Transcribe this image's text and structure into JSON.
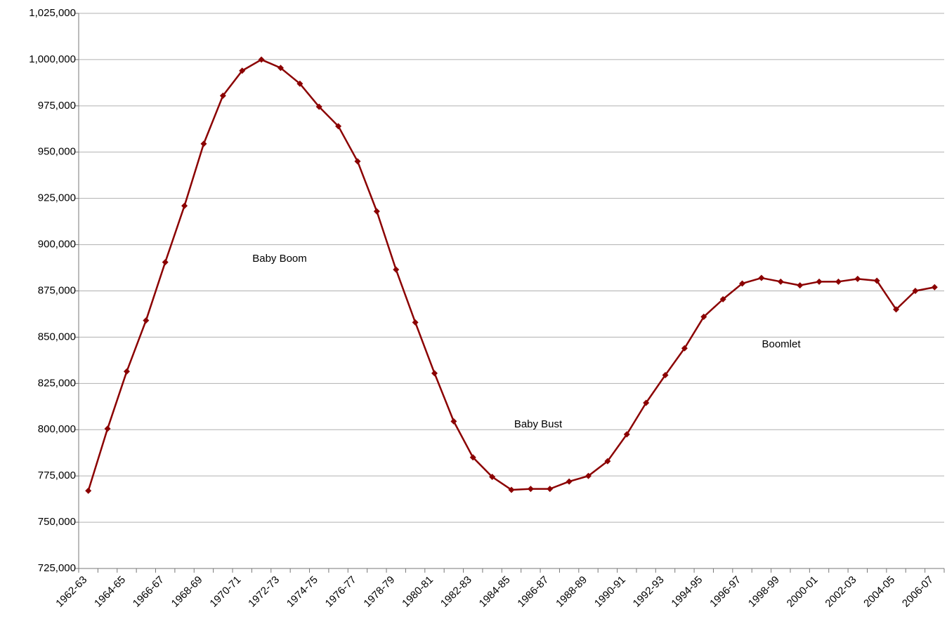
{
  "chart_data": {
    "type": "line",
    "categories": [
      "1962-63",
      null,
      "1964-65",
      null,
      "1966-67",
      null,
      "1968-69",
      null,
      "1970-71",
      null,
      "1972-73",
      null,
      "1974-75",
      null,
      "1976-77",
      null,
      "1978-79",
      null,
      "1980-81",
      null,
      "1982-83",
      null,
      "1984-85",
      null,
      "1986-87",
      null,
      "1988-89",
      null,
      "1990-91",
      null,
      "1992-93",
      null,
      "1994-95",
      null,
      "1996-97",
      null,
      "1998-99",
      null,
      "2000-01",
      null,
      "2002-03",
      null,
      "2004-05",
      null,
      "2006-07"
    ],
    "values": [
      767000,
      800500,
      831500,
      859000,
      890500,
      921000,
      954500,
      980500,
      994000,
      1000000,
      995500,
      987000,
      974500,
      964000,
      945000,
      918000,
      886500,
      858000,
      830500,
      804500,
      785000,
      774500,
      767500,
      768000,
      768000,
      772000,
      775000,
      783000,
      797500,
      814500,
      829500,
      844000,
      861000,
      870500,
      879000,
      882000,
      880000,
      878000,
      880000,
      880000,
      881500,
      880500,
      865000,
      875000,
      877000
    ],
    "color": "#8b0000",
    "ylim": [
      725000,
      1025000
    ],
    "yticks": [
      {
        "value": 725000,
        "label": "725,000"
      },
      {
        "value": 750000,
        "label": "750,000"
      },
      {
        "value": 775000,
        "label": "775,000"
      },
      {
        "value": 800000,
        "label": "800,000"
      },
      {
        "value": 825000,
        "label": "825,000"
      },
      {
        "value": 850000,
        "label": "850,000"
      },
      {
        "value": 875000,
        "label": "875,000"
      },
      {
        "value": 900000,
        "label": "900,000"
      },
      {
        "value": 925000,
        "label": "925,000"
      },
      {
        "value": 950000,
        "label": "950,000"
      },
      {
        "value": 975000,
        "label": "975,000"
      },
      {
        "value": 1000000,
        "label": "1,000,000"
      },
      {
        "value": 1025000,
        "label": "1,025,000"
      }
    ],
    "grid": true,
    "annotations": [
      "Baby Boom",
      "Baby Bust",
      "Boomlet"
    ]
  }
}
